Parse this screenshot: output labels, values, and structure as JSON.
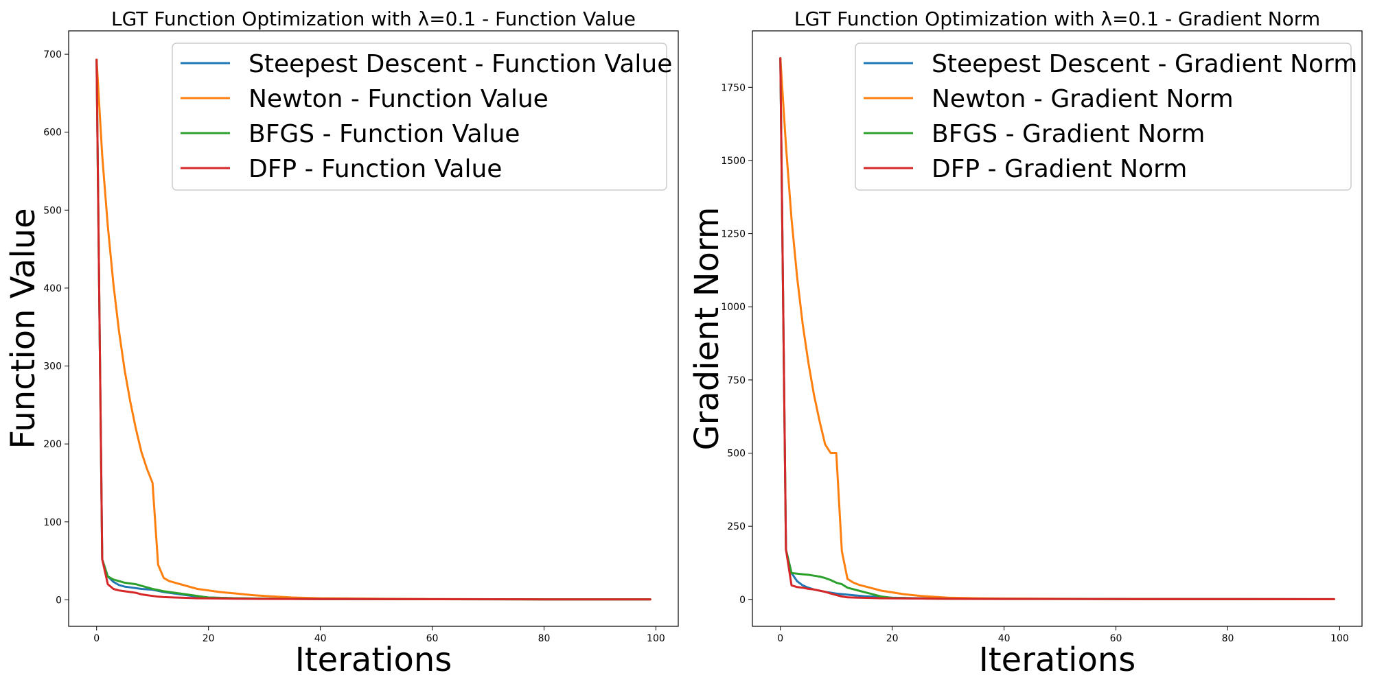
{
  "chart_data": [
    {
      "type": "line",
      "title": "LGT Function Optimization with λ=0.1 - Function Value",
      "xlabel": "Iterations",
      "ylabel": "Function Value",
      "xlim": [
        -5,
        104
      ],
      "ylim": [
        -34,
        730
      ],
      "xticks": [
        0,
        20,
        40,
        60,
        80,
        100
      ],
      "yticks": [
        0,
        100,
        200,
        300,
        400,
        500,
        600,
        700
      ],
      "legend_position": "upper right",
      "grid": false,
      "series": [
        {
          "name": "Steepest Descent - Function Value",
          "color": "#1f77b4",
          "x": [
            0,
            1,
            2,
            3,
            4,
            5,
            6,
            8,
            10,
            12,
            15,
            18,
            20,
            25,
            30,
            40,
            60,
            80,
            99
          ],
          "y": [
            693,
            52,
            30,
            23,
            19,
            17,
            16,
            14,
            13,
            10,
            7,
            4,
            3,
            2,
            1.5,
            1,
            0.8,
            0.6,
            0.5
          ]
        },
        {
          "name": "Newton - Function Value",
          "color": "#ff7f0e",
          "x": [
            0,
            1,
            2,
            3,
            4,
            5,
            6,
            7,
            8,
            9,
            10,
            11,
            12,
            13,
            14,
            16,
            18,
            20,
            22,
            25,
            28,
            30,
            35,
            40,
            50,
            60,
            80,
            99
          ],
          "y": [
            693,
            570,
            480,
            405,
            345,
            295,
            255,
            220,
            190,
            168,
            150,
            45,
            28,
            24,
            22,
            18,
            14,
            12,
            10,
            8,
            6,
            5,
            3,
            2,
            1.5,
            1,
            0.6,
            0.5
          ]
        },
        {
          "name": "BFGS - Function Value",
          "color": "#2ca02c",
          "x": [
            0,
            1,
            2,
            3,
            4,
            5,
            6,
            7,
            8,
            9,
            10,
            12,
            14,
            16,
            18,
            20,
            25,
            30,
            40,
            60,
            80,
            99
          ],
          "y": [
            693,
            52,
            30,
            26,
            24,
            22,
            21,
            20,
            18,
            16,
            14,
            11,
            9,
            7,
            5,
            3,
            2,
            1.5,
            1,
            0.8,
            0.6,
            0.5
          ]
        },
        {
          "name": "DFP - Function Value",
          "color": "#d62728",
          "x": [
            0,
            1,
            2,
            3,
            4,
            5,
            6,
            7,
            8,
            9,
            10,
            11,
            12,
            14,
            16,
            18,
            20,
            25,
            30,
            40,
            60,
            80,
            99
          ],
          "y": [
            693,
            52,
            20,
            14,
            12,
            11,
            10,
            9,
            7,
            6,
            5,
            4,
            3.5,
            3,
            2.5,
            2,
            1.8,
            1.5,
            1.2,
            1,
            0.8,
            0.6,
            0.5
          ]
        }
      ]
    },
    {
      "type": "line",
      "title": "LGT Function Optimization with λ=0.1 - Gradient Norm",
      "xlabel": "Iterations",
      "ylabel": "Gradient Norm",
      "xlim": [
        -5,
        104
      ],
      "ylim": [
        -92,
        1943
      ],
      "xticks": [
        0,
        20,
        40,
        60,
        80,
        100
      ],
      "yticks": [
        0,
        250,
        500,
        750,
        1000,
        1250,
        1500,
        1750
      ],
      "legend_position": "upper right",
      "grid": false,
      "series": [
        {
          "name": "Steepest Descent - Gradient Norm",
          "color": "#1f77b4",
          "x": [
            0,
            1,
            2,
            3,
            4,
            5,
            6,
            8,
            10,
            12,
            15,
            18,
            20,
            25,
            30,
            40,
            60,
            80,
            99
          ],
          "y": [
            1850,
            170,
            90,
            62,
            48,
            40,
            34,
            26,
            20,
            16,
            11,
            8,
            6,
            4,
            3,
            2,
            1.5,
            1,
            0.8
          ]
        },
        {
          "name": "Newton - Gradient Norm",
          "color": "#ff7f0e",
          "x": [
            0,
            1,
            2,
            3,
            4,
            5,
            6,
            7,
            8,
            9,
            10,
            11,
            12,
            13,
            14,
            16,
            18,
            20,
            22,
            25,
            28,
            30,
            35,
            40,
            50,
            60,
            80,
            99
          ],
          "y": [
            1850,
            1550,
            1300,
            1100,
            940,
            810,
            700,
            610,
            530,
            500,
            500,
            165,
            70,
            58,
            50,
            40,
            30,
            24,
            18,
            12,
            8,
            6,
            4,
            3,
            2,
            1.5,
            1,
            0.8
          ]
        },
        {
          "name": "BFGS - Gradient Norm",
          "color": "#2ca02c",
          "x": [
            0,
            1,
            2,
            3,
            4,
            5,
            6,
            7,
            8,
            9,
            10,
            11,
            12,
            14,
            16,
            18,
            20,
            25,
            30,
            40,
            60,
            80,
            99
          ],
          "y": [
            1850,
            170,
            90,
            88,
            86,
            84,
            81,
            78,
            73,
            66,
            57,
            52,
            40,
            30,
            20,
            10,
            5,
            3,
            2,
            1.5,
            1,
            0.8,
            0.6
          ]
        },
        {
          "name": "DFP - Gradient Norm",
          "color": "#d62728",
          "x": [
            0,
            1,
            2,
            3,
            4,
            5,
            6,
            7,
            8,
            9,
            10,
            11,
            12,
            14,
            16,
            18,
            20,
            25,
            30,
            40,
            60,
            80,
            99
          ],
          "y": [
            1850,
            170,
            48,
            42,
            40,
            36,
            34,
            30,
            26,
            20,
            15,
            10,
            7,
            6,
            5,
            4,
            3.5,
            3,
            2,
            1.5,
            1,
            0.8,
            0.6
          ]
        }
      ]
    }
  ]
}
